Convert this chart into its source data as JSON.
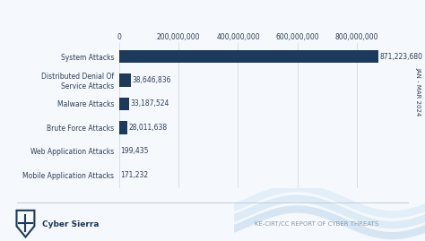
{
  "categories": [
    "Mobile Application Attacks",
    "Web Application Attacks",
    "Brute Force Attacks",
    "Malware Attacks",
    "Distributed Denial Of\nService Attacks",
    "System Attacks"
  ],
  "values": [
    171232,
    199435,
    28011638,
    33187524,
    38646836,
    871223680
  ],
  "labels": [
    "171,232",
    "199,435",
    "28,011,638",
    "33,187,524",
    "38,646,836",
    "871,223,680"
  ],
  "bar_color": "#1b3a5c",
  "background_color": "#f5f8fc",
  "text_color": "#2c3e5a",
  "axis_color": "#2c3e5a",
  "footer_left": "Cyber Sierra",
  "footer_right": "KE-CIRT/CC REPORT OF CYBER THREATS",
  "side_label": "JAN - MAR 2024",
  "xlim": [
    0,
    900000000
  ],
  "xticks": [
    0,
    200000000,
    400000000,
    600000000,
    800000000
  ],
  "xtick_labels": [
    "0",
    "200,000,000",
    "400,000,000",
    "600,000,000",
    "800,000,000"
  ]
}
